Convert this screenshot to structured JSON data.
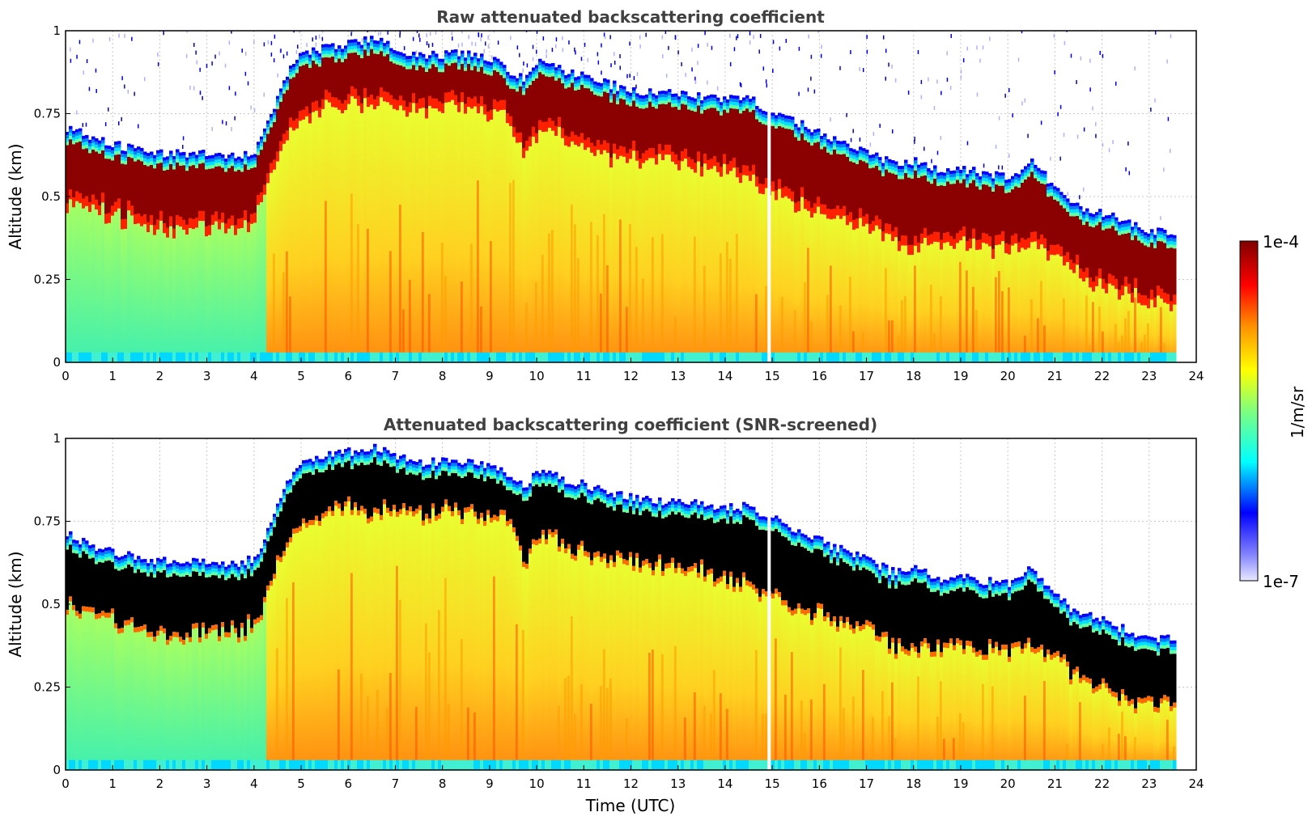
{
  "chart_data": [
    {
      "type": "heatmap",
      "title": "Raw attenuated backscattering coefficient",
      "xlabel": "",
      "ylabel": "Altitude (km)",
      "xlim": [
        0,
        24
      ],
      "ylim": [
        0,
        1
      ],
      "xticks": [
        "0",
        "1",
        "2",
        "3",
        "4",
        "5",
        "6",
        "7",
        "8",
        "9",
        "10",
        "11",
        "12",
        "13",
        "14",
        "15",
        "16",
        "17",
        "18",
        "19",
        "20",
        "21",
        "22",
        "23",
        "24"
      ],
      "yticks": [
        "0",
        "0.25",
        "0.5",
        "0.75",
        "1"
      ],
      "data_end_hour": 23.6,
      "screened": false,
      "cloud_base_km": {
        "time_h": [
          0,
          0.5,
          1,
          1.5,
          2,
          2.5,
          3,
          3.5,
          4,
          4.3,
          4.6,
          5,
          5.5,
          6,
          6.5,
          7,
          7.5,
          8,
          8.5,
          9,
          9.4,
          9.7,
          10,
          10.5,
          11,
          11.5,
          12,
          12.5,
          13,
          13.5,
          14,
          14.5,
          14.9,
          15.3,
          15.7,
          16,
          16.5,
          17,
          17.5,
          18,
          18.5,
          19,
          19.5,
          20,
          20.5,
          21,
          21.5,
          22,
          22.5,
          23,
          23.6
        ],
        "alt_km": [
          0.52,
          0.5,
          0.48,
          0.45,
          0.43,
          0.43,
          0.44,
          0.44,
          0.46,
          0.58,
          0.7,
          0.76,
          0.8,
          0.81,
          0.81,
          0.8,
          0.8,
          0.8,
          0.8,
          0.79,
          0.77,
          0.65,
          0.73,
          0.71,
          0.68,
          0.66,
          0.65,
          0.64,
          0.63,
          0.62,
          0.6,
          0.58,
          0.56,
          0.52,
          0.5,
          0.48,
          0.46,
          0.44,
          0.4,
          0.38,
          0.4,
          0.39,
          0.38,
          0.38,
          0.4,
          0.35,
          0.3,
          0.26,
          0.24,
          0.22,
          0.21
        ]
      },
      "cloud_top_km": {
        "time_h": [
          0,
          0.5,
          1,
          1.5,
          2,
          2.5,
          3,
          3.5,
          4,
          4.3,
          4.6,
          5,
          5.5,
          6,
          6.5,
          7,
          7.5,
          8,
          8.5,
          9,
          9.4,
          9.7,
          10,
          10.5,
          11,
          11.5,
          12,
          12.5,
          13,
          13.5,
          14,
          14.5,
          14.9,
          15.3,
          15.7,
          16,
          16.5,
          17,
          17.5,
          18,
          18.5,
          19,
          19.5,
          20,
          20.5,
          21,
          21.5,
          22,
          22.5,
          23,
          23.6
        ],
        "alt_km": [
          0.71,
          0.68,
          0.66,
          0.64,
          0.63,
          0.63,
          0.63,
          0.62,
          0.64,
          0.73,
          0.86,
          0.93,
          0.95,
          0.96,
          0.98,
          0.94,
          0.93,
          0.93,
          0.93,
          0.92,
          0.88,
          0.85,
          0.91,
          0.88,
          0.86,
          0.84,
          0.82,
          0.81,
          0.81,
          0.8,
          0.79,
          0.8,
          0.76,
          0.74,
          0.71,
          0.69,
          0.66,
          0.63,
          0.6,
          0.61,
          0.58,
          0.58,
          0.57,
          0.56,
          0.61,
          0.52,
          0.47,
          0.45,
          0.42,
          0.4,
          0.39
        ]
      },
      "gaps_h": [
        14.9
      ]
    },
    {
      "type": "heatmap",
      "title": "Attenuated backscattering coefficient (SNR-screened)",
      "xlabel": "Time (UTC)",
      "ylabel": "Altitude (km)",
      "xlim": [
        0,
        24
      ],
      "ylim": [
        0,
        1
      ],
      "xticks": [
        "0",
        "1",
        "2",
        "3",
        "4",
        "5",
        "6",
        "7",
        "8",
        "9",
        "10",
        "11",
        "12",
        "13",
        "14",
        "15",
        "16",
        "17",
        "18",
        "19",
        "20",
        "21",
        "22",
        "23",
        "24"
      ],
      "yticks": [
        "0",
        "0.25",
        "0.5",
        "0.75",
        "1"
      ],
      "data_end_hour": 23.6,
      "screened": true,
      "gaps_h": [
        14.9
      ]
    }
  ],
  "colorbar": {
    "label": "1/m/sr",
    "max_label": "1e-4",
    "min_label": "1e-7",
    "colors": [
      "#e8e8ff",
      "#0000ff",
      "#00ffff",
      "#7fff7f",
      "#ffff00",
      "#ff7f00",
      "#ff0000",
      "#800000"
    ]
  }
}
